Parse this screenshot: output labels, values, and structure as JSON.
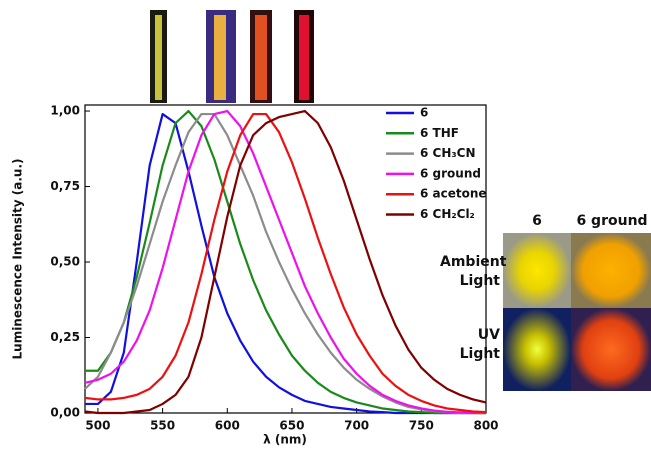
{
  "chart_data": {
    "type": "line",
    "x_label": "λ (nm)",
    "y_label": "Luminescence Intensity (a.u.)",
    "x": [
      490,
      500,
      510,
      520,
      530,
      540,
      550,
      560,
      570,
      580,
      590,
      600,
      610,
      620,
      630,
      640,
      650,
      660,
      670,
      680,
      690,
      700,
      710,
      720,
      730,
      740,
      750,
      760,
      770,
      780,
      790,
      800
    ],
    "series": [
      {
        "name": "6",
        "color": "#1010e0",
        "values": [
          0.03,
          0.03,
          0.07,
          0.2,
          0.5,
          0.82,
          0.99,
          0.96,
          0.8,
          0.62,
          0.45,
          0.33,
          0.24,
          0.17,
          0.12,
          0.085,
          0.06,
          0.04,
          0.03,
          0.02,
          0.015,
          0.01,
          0.005,
          0.003,
          0,
          0,
          0,
          0,
          0,
          0,
          0,
          0
        ]
      },
      {
        "name": "6 THF",
        "color": "#1a8a1a",
        "values": [
          0.14,
          0.14,
          0.2,
          0.3,
          0.45,
          0.63,
          0.82,
          0.96,
          1.0,
          0.95,
          0.84,
          0.7,
          0.56,
          0.44,
          0.34,
          0.26,
          0.19,
          0.14,
          0.1,
          0.07,
          0.05,
          0.035,
          0.025,
          0.015,
          0.01,
          0.005,
          0.003,
          0,
          0,
          0,
          0,
          0
        ]
      },
      {
        "name": "6 CH₃CN",
        "color": "#8c8c8c",
        "values": [
          0.08,
          0.12,
          0.2,
          0.3,
          0.42,
          0.56,
          0.7,
          0.82,
          0.93,
          0.99,
          0.99,
          0.92,
          0.82,
          0.72,
          0.6,
          0.5,
          0.41,
          0.33,
          0.26,
          0.2,
          0.15,
          0.11,
          0.08,
          0.055,
          0.035,
          0.02,
          0.012,
          0.006,
          0.003,
          0,
          0,
          0
        ]
      },
      {
        "name": "6 ground",
        "color": "#ee10ee",
        "values": [
          0.1,
          0.11,
          0.13,
          0.17,
          0.24,
          0.34,
          0.48,
          0.64,
          0.8,
          0.92,
          0.99,
          1.0,
          0.95,
          0.86,
          0.75,
          0.64,
          0.53,
          0.42,
          0.33,
          0.25,
          0.18,
          0.13,
          0.09,
          0.06,
          0.04,
          0.025,
          0.015,
          0.008,
          0.004,
          0.002,
          0,
          0
        ]
      },
      {
        "name": "6 acetone",
        "color": "#ee1010",
        "values": [
          0.05,
          0.045,
          0.045,
          0.05,
          0.06,
          0.08,
          0.12,
          0.19,
          0.3,
          0.46,
          0.64,
          0.8,
          0.92,
          0.99,
          0.99,
          0.93,
          0.83,
          0.71,
          0.58,
          0.46,
          0.35,
          0.26,
          0.19,
          0.13,
          0.09,
          0.06,
          0.04,
          0.025,
          0.015,
          0.01,
          0.005,
          0.003
        ]
      },
      {
        "name": "6 CH₂Cl₂",
        "color": "#800000",
        "values": [
          0.005,
          0,
          0,
          0,
          0.005,
          0.01,
          0.03,
          0.06,
          0.12,
          0.25,
          0.45,
          0.65,
          0.82,
          0.92,
          0.96,
          0.98,
          0.99,
          1.0,
          0.96,
          0.88,
          0.77,
          0.64,
          0.51,
          0.39,
          0.29,
          0.21,
          0.15,
          0.11,
          0.08,
          0.06,
          0.045,
          0.035
        ]
      }
    ],
    "xlim": [
      490,
      800
    ],
    "xticks": [
      500,
      550,
      600,
      650,
      700,
      750,
      800
    ],
    "ylim": [
      0,
      1.02
    ],
    "yticks": [
      {
        "value": 0,
        "label": "0,00"
      },
      {
        "value": 0.25,
        "label": "0,25"
      },
      {
        "value": 0.5,
        "label": "0,50"
      },
      {
        "value": 0.75,
        "label": "0,75"
      },
      {
        "value": 1,
        "label": "1,00"
      }
    ],
    "photo_labels": [
      "6",
      "6 ground",
      "Ambient Light",
      "UV Light"
    ]
  }
}
